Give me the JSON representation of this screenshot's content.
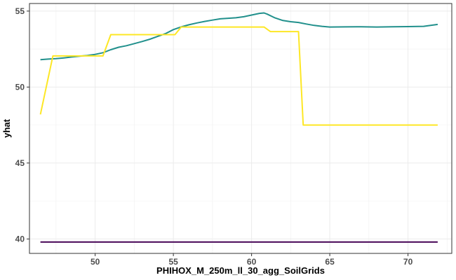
{
  "chart_data": {
    "type": "line",
    "title": "",
    "xlabel": "PHIHOX_M_250m_ll_30_agg_SoilGrids",
    "ylabel": "yhat",
    "xlim": [
      45.8,
      72.8
    ],
    "ylim": [
      39.05,
      55.5
    ],
    "x_ticks": [
      50,
      55,
      60,
      65,
      70
    ],
    "y_ticks": [
      40,
      45,
      50,
      55
    ],
    "grid": true,
    "legend": "none",
    "series": [
      {
        "color": "#21908C",
        "x": [
          46.5,
          47.0,
          47.5,
          48.0,
          48.5,
          49.0,
          49.5,
          50.0,
          50.5,
          51.0,
          51.5,
          52.0,
          52.5,
          53.0,
          53.5,
          54.0,
          54.5,
          55.0,
          55.5,
          56.0,
          56.5,
          57.0,
          57.5,
          58.0,
          58.5,
          59.0,
          59.5,
          60.0,
          60.5,
          60.8,
          61.0,
          61.5,
          62.0,
          62.5,
          63.0,
          63.5,
          64.0,
          64.5,
          65.0,
          66.0,
          67.0,
          68.0,
          69.0,
          70.0,
          71.0,
          71.9
        ],
        "y": [
          51.8,
          51.84,
          51.87,
          51.92,
          51.98,
          52.03,
          52.08,
          52.15,
          52.26,
          52.46,
          52.62,
          52.72,
          52.86,
          53.0,
          53.15,
          53.34,
          53.52,
          53.78,
          53.96,
          54.1,
          54.22,
          54.32,
          54.41,
          54.49,
          54.53,
          54.56,
          54.63,
          54.74,
          54.85,
          54.88,
          54.8,
          54.55,
          54.38,
          54.3,
          54.25,
          54.15,
          54.06,
          54.0,
          53.95,
          53.96,
          53.97,
          53.95,
          53.97,
          53.98,
          54.0,
          54.12
        ]
      },
      {
        "color": "#FDE725",
        "x": [
          46.5,
          47.3,
          47.3,
          50.5,
          51.0,
          55.1,
          55.5,
          60.8,
          61.2,
          63.0,
          63.3,
          71.9
        ],
        "y": [
          48.2,
          52.05,
          52.05,
          52.05,
          53.45,
          53.45,
          53.95,
          53.95,
          53.65,
          53.65,
          47.5,
          47.5
        ]
      },
      {
        "color": "#440154",
        "x": [
          46.5,
          71.9
        ],
        "y": [
          39.8,
          39.8
        ]
      }
    ]
  }
}
